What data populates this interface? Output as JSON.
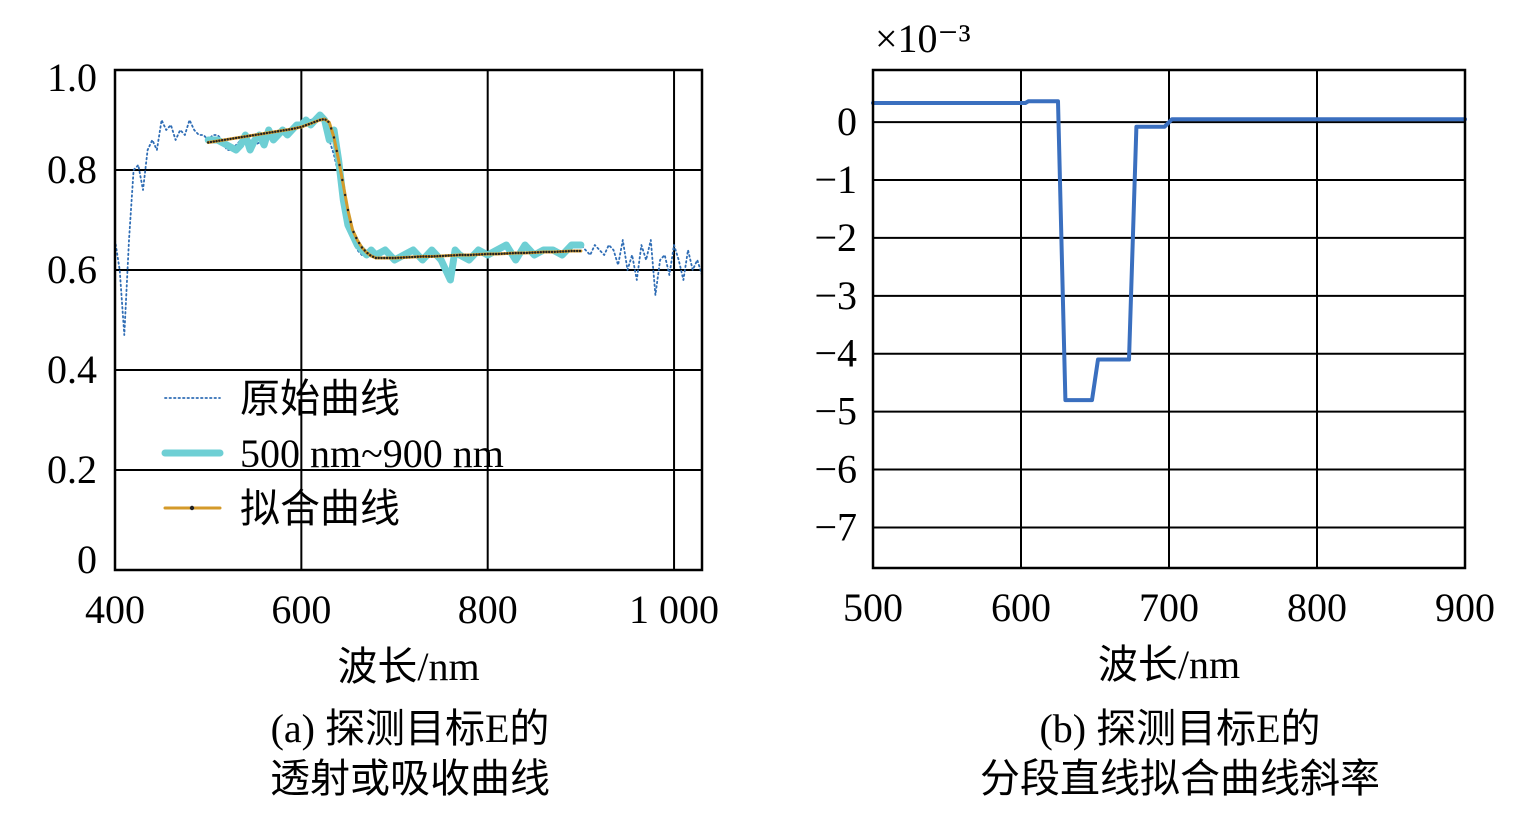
{
  "chart_data": [
    {
      "id": "a",
      "type": "line",
      "caption_line1": "(a) 探测目标E的",
      "caption_line2": "透射或吸收曲线",
      "xlabel": "波长/nm",
      "ylabel": "",
      "xlim": [
        400,
        1030
      ],
      "ylim": [
        0,
        1.0
      ],
      "x_ticks": [
        400,
        600,
        800,
        1000
      ],
      "x_tick_labels": [
        "400",
        "600",
        "800",
        "1 000"
      ],
      "y_ticks": [
        0,
        0.2,
        0.4,
        0.6,
        0.8,
        1.0
      ],
      "y_tick_labels": [
        "0",
        "0.2",
        "0.4",
        "0.6",
        "0.8",
        "1.0"
      ],
      "grid": true,
      "legend_position": "bottom-left",
      "series": [
        {
          "name": "原始曲线",
          "style": "dotted",
          "color": "#2f6db5",
          "x": [
            400,
            405,
            410,
            415,
            420,
            425,
            430,
            435,
            440,
            445,
            450,
            455,
            460,
            465,
            470,
            475,
            480,
            485,
            490,
            495,
            500,
            505,
            510,
            515,
            520,
            525,
            530,
            535,
            540,
            545,
            550,
            560,
            570,
            580,
            590,
            600,
            610,
            620,
            625,
            630,
            635,
            640,
            645,
            650,
            655,
            660,
            665,
            670,
            680,
            690,
            700,
            710,
            720,
            730,
            740,
            750,
            760,
            765,
            770,
            780,
            790,
            800,
            810,
            820,
            830,
            840,
            850,
            860,
            870,
            880,
            890,
            900,
            905,
            910,
            915,
            920,
            925,
            930,
            935,
            940,
            945,
            950,
            955,
            960,
            965,
            970,
            975,
            980,
            985,
            990,
            995,
            1000,
            1005,
            1010,
            1015,
            1020,
            1025,
            1030
          ],
          "y": [
            0.66,
            0.6,
            0.47,
            0.66,
            0.8,
            0.81,
            0.76,
            0.84,
            0.86,
            0.84,
            0.9,
            0.88,
            0.89,
            0.86,
            0.88,
            0.87,
            0.9,
            0.88,
            0.87,
            0.87,
            0.86,
            0.87,
            0.87,
            0.86,
            0.84,
            0.84,
            0.85,
            0.86,
            0.87,
            0.86,
            0.85,
            0.86,
            0.87,
            0.88,
            0.88,
            0.89,
            0.9,
            0.91,
            0.89,
            0.86,
            0.83,
            0.79,
            0.74,
            0.68,
            0.66,
            0.64,
            0.63,
            0.64,
            0.63,
            0.64,
            0.62,
            0.63,
            0.64,
            0.62,
            0.64,
            0.61,
            0.58,
            0.64,
            0.63,
            0.62,
            0.64,
            0.63,
            0.64,
            0.65,
            0.62,
            0.65,
            0.63,
            0.64,
            0.64,
            0.63,
            0.65,
            0.65,
            0.64,
            0.63,
            0.65,
            0.64,
            0.63,
            0.65,
            0.64,
            0.61,
            0.66,
            0.6,
            0.63,
            0.58,
            0.65,
            0.62,
            0.66,
            0.55,
            0.62,
            0.63,
            0.59,
            0.65,
            0.62,
            0.58,
            0.64,
            0.6,
            0.62,
            0.59
          ]
        },
        {
          "name": "500 nm~900 nm",
          "style": "thick",
          "color": "#6ecfd4",
          "x": [
            500,
            510,
            520,
            530,
            535,
            540,
            545,
            550,
            555,
            560,
            565,
            570,
            575,
            580,
            585,
            590,
            595,
            600,
            605,
            610,
            615,
            620,
            625,
            630,
            635,
            640,
            645,
            650,
            655,
            660,
            665,
            670,
            675,
            680,
            690,
            700,
            710,
            720,
            730,
            740,
            750,
            760,
            765,
            770,
            780,
            790,
            800,
            810,
            820,
            830,
            840,
            850,
            860,
            870,
            880,
            890,
            900
          ],
          "y": [
            0.86,
            0.86,
            0.85,
            0.84,
            0.85,
            0.87,
            0.84,
            0.86,
            0.87,
            0.85,
            0.88,
            0.86,
            0.87,
            0.88,
            0.87,
            0.88,
            0.89,
            0.89,
            0.9,
            0.89,
            0.9,
            0.91,
            0.9,
            0.86,
            0.88,
            0.82,
            0.74,
            0.69,
            0.67,
            0.65,
            0.64,
            0.63,
            0.64,
            0.63,
            0.64,
            0.62,
            0.63,
            0.64,
            0.62,
            0.64,
            0.62,
            0.58,
            0.64,
            0.63,
            0.62,
            0.64,
            0.63,
            0.64,
            0.65,
            0.62,
            0.65,
            0.63,
            0.64,
            0.64,
            0.63,
            0.65,
            0.65
          ]
        },
        {
          "name": "拟合曲线",
          "style": "solid-with-dots",
          "color": "#d49a2a",
          "x": [
            500,
            510,
            520,
            530,
            540,
            550,
            560,
            570,
            580,
            590,
            600,
            610,
            620,
            625,
            630,
            635,
            640,
            645,
            650,
            655,
            660,
            665,
            670,
            675,
            680,
            690,
            700,
            710,
            720,
            730,
            740,
            750,
            760,
            770,
            780,
            790,
            800,
            810,
            820,
            830,
            840,
            850,
            860,
            870,
            880,
            890,
            900
          ],
          "y": [
            0.855,
            0.858,
            0.861,
            0.864,
            0.867,
            0.87,
            0.873,
            0.876,
            0.879,
            0.882,
            0.886,
            0.893,
            0.9,
            0.902,
            0.895,
            0.865,
            0.82,
            0.77,
            0.72,
            0.68,
            0.66,
            0.645,
            0.635,
            0.628,
            0.624,
            0.624,
            0.624,
            0.625,
            0.626,
            0.627,
            0.627,
            0.628,
            0.629,
            0.63,
            0.63,
            0.631,
            0.632,
            0.632,
            0.633,
            0.634,
            0.634,
            0.635,
            0.636,
            0.636,
            0.637,
            0.638,
            0.638
          ]
        }
      ]
    },
    {
      "id": "b",
      "type": "line",
      "caption_line1": "(b) 探测目标E的",
      "caption_line2": "分段直线拟合曲线斜率",
      "xlabel": "波长/nm",
      "ylabel": "",
      "scale_label": "×10⁻³",
      "xlim": [
        500,
        900
      ],
      "ylim": [
        -7.7,
        0.9
      ],
      "x_ticks": [
        500,
        600,
        700,
        800,
        900
      ],
      "x_tick_labels": [
        "500",
        "600",
        "700",
        "800",
        "900"
      ],
      "y_ticks": [
        0,
        -1,
        -2,
        -3,
        -4,
        -5,
        -6,
        -7
      ],
      "y_tick_labels": [
        "0",
        "−1",
        "−2",
        "−3",
        "−4",
        "−5",
        "−6",
        "−7"
      ],
      "grid": true,
      "series": [
        {
          "style": "solid",
          "color": "#3a6fbf",
          "x": [
            500,
            603,
            605,
            625,
            630,
            648,
            652,
            673,
            678,
            697,
            702,
            900
          ],
          "y": [
            0.33,
            0.33,
            0.36,
            0.36,
            -4.8,
            -4.8,
            -4.1,
            -4.1,
            -0.08,
            -0.08,
            0.05,
            0.05
          ]
        }
      ]
    }
  ]
}
